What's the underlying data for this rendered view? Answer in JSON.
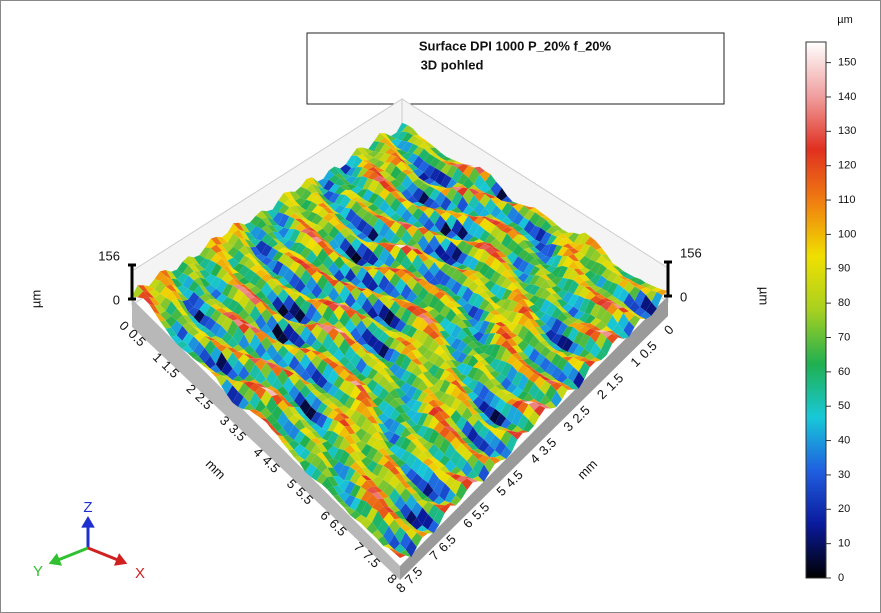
{
  "chart_data": {
    "type": "surface3d",
    "title": "Surface DPI 1000 P_20% f_20%",
    "subtitle": "3D pohled",
    "xlabel": "mm",
    "ylabel": "mm",
    "zlabel": "µm",
    "xlim": [
      0,
      8
    ],
    "xticks": [
      0,
      0.5,
      1,
      1.5,
      2,
      2.5,
      3,
      3.5,
      4,
      4.5,
      5,
      5.5,
      6,
      6.5,
      7,
      7.5,
      8
    ],
    "ylim": [
      0,
      8
    ],
    "yticks": [
      0,
      0.5,
      1,
      1.5,
      2,
      2.5,
      3,
      3.5,
      4,
      4.5,
      5,
      5.5,
      6,
      6.5,
      7,
      7.5,
      8
    ],
    "zlim": [
      0,
      156
    ],
    "zticks": [
      0,
      156
    ],
    "colorbar": {
      "label": "µm",
      "lim": [
        0,
        156
      ],
      "ticks": [
        0,
        10,
        20,
        30,
        40,
        50,
        60,
        70,
        80,
        90,
        100,
        110,
        120,
        130,
        140,
        150
      ]
    },
    "colorscale": [
      "#000000",
      "#0a1a9c",
      "#1f5fe0",
      "#18c8d8",
      "#20b050",
      "#a8d020",
      "#f0e000",
      "#f08010",
      "#e03020",
      "#f0a0a0",
      "#ffffff"
    ],
    "triad": {
      "x": "X",
      "y": "Y",
      "z": "Z"
    }
  }
}
